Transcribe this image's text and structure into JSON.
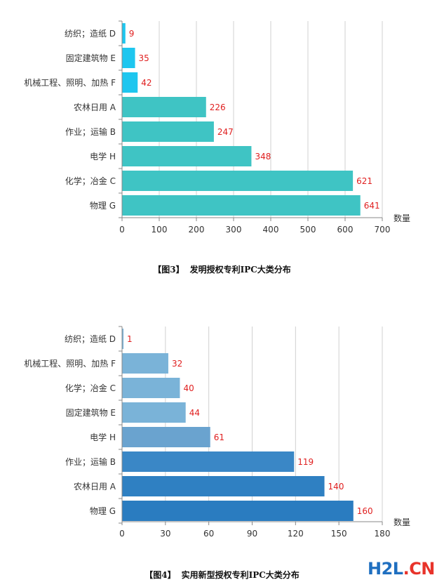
{
  "chart_data": [
    {
      "type": "bar",
      "orientation": "horizontal",
      "categories": [
        "纺织；造纸 D",
        "固定建筑物 E",
        "机械工程、照明、加热 F",
        "农林日用 A",
        "作业；运输 B",
        "电学 H",
        "化学；冶金 C",
        "物理 G"
      ],
      "values": [
        9,
        35,
        42,
        226,
        247,
        348,
        621,
        641
      ],
      "xlabel": "数量",
      "xlim": [
        0,
        700
      ],
      "xticks": [
        0,
        100,
        200,
        300,
        400,
        500,
        600,
        700
      ],
      "grid": "vertical",
      "colors": [
        "#1ec6ef",
        "#1ec6ef",
        "#1ec6ef",
        "#3fc4c4",
        "#3fc4c4",
        "#3fc4c4",
        "#3fc4c4",
        "#3fc4c4"
      ],
      "label_color": "#e02020",
      "caption": {
        "number": "【图3】",
        "text": "发明授权专利IPC大类分布"
      }
    },
    {
      "type": "bar",
      "orientation": "horizontal",
      "categories": [
        "纺织；造纸 D",
        "机械工程、照明、加热 F",
        "化学；冶金 C",
        "固定建筑物 E",
        "电学 H",
        "作业；运输 B",
        "农林日用 A",
        "物理 G"
      ],
      "values": [
        1,
        32,
        40,
        44,
        61,
        119,
        140,
        160
      ],
      "xlabel": "数量",
      "xlim": [
        0,
        180
      ],
      "xticks": [
        0,
        30,
        60,
        90,
        120,
        150,
        180
      ],
      "grid": "vertical",
      "colors": [
        "#7ab3d8",
        "#7ab3d8",
        "#7ab3d8",
        "#7ab3d8",
        "#6aa3cf",
        "#3a87c6",
        "#2f80c2",
        "#2a7cc0"
      ],
      "label_color": "#e02020",
      "caption": {
        "number": "【图4】",
        "text": "实用新型授权专利IPC大类分布"
      }
    }
  ],
  "watermark": {
    "text": "H2L.CN",
    "h2_color": "#1f6fc0",
    "l_color": "#1f6fc0",
    "cn_color": "#e8332a"
  }
}
